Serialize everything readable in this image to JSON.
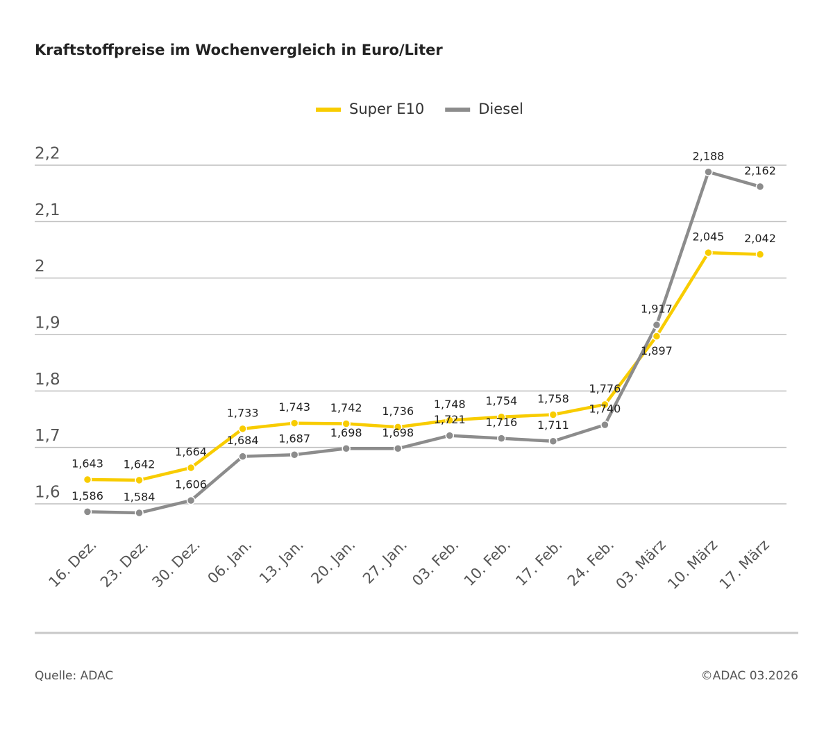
{
  "chart_data": {
    "type": "line",
    "title": "Kraftstoffpreise im Wochenvergleich in Euro/Liter",
    "categories": [
      "16. Dez.",
      "23. Dez.",
      "30. Dez.",
      "06. Jan.",
      "13. Jan.",
      "20. Jan.",
      "27. Jan.",
      "03. Feb.",
      "10. Feb.",
      "17. Feb.",
      "24. Feb.",
      "03. März",
      "10. März",
      "17. März"
    ],
    "series": [
      {
        "name": "Super E10",
        "color": "#f8cc00",
        "values": [
          1.643,
          1.642,
          1.664,
          1.733,
          1.743,
          1.742,
          1.736,
          1.748,
          1.754,
          1.758,
          1.776,
          1.897,
          2.045,
          2.042
        ],
        "value_labels": [
          "1,643",
          "1,642",
          "1,664",
          "1,733",
          "1,743",
          "1,742",
          "1,736",
          "1,748",
          "1,754",
          "1,758",
          "1,776",
          "1,897",
          "2,045",
          "2,042"
        ]
      },
      {
        "name": "Diesel",
        "color": "#8c8c8c",
        "values": [
          1.586,
          1.584,
          1.606,
          1.684,
          1.687,
          1.698,
          1.698,
          1.721,
          1.716,
          1.711,
          1.74,
          1.917,
          2.188,
          2.162
        ],
        "value_labels": [
          "1,586",
          "1,584",
          "1,606",
          "1,684",
          "1,687",
          "1,698",
          "1,698",
          "1,721",
          "1,716",
          "1,711",
          "1,740",
          "1,917",
          "2,188",
          "2,162"
        ]
      }
    ],
    "ylim": [
      1.6,
      2.2
    ],
    "yticks": [
      {
        "value": 1.6,
        "label": "1,6"
      },
      {
        "value": 1.7,
        "label": "1,7"
      },
      {
        "value": 1.8,
        "label": "1,8"
      },
      {
        "value": 1.9,
        "label": "1,9"
      },
      2,
      {
        "value": 2.1,
        "label": "2,1"
      },
      {
        "value": 2.2,
        "label": "2,2"
      }
    ],
    "grid": true,
    "legend": "top",
    "source": "Quelle: ADAC",
    "credit": "©ADAC 03.2026"
  }
}
